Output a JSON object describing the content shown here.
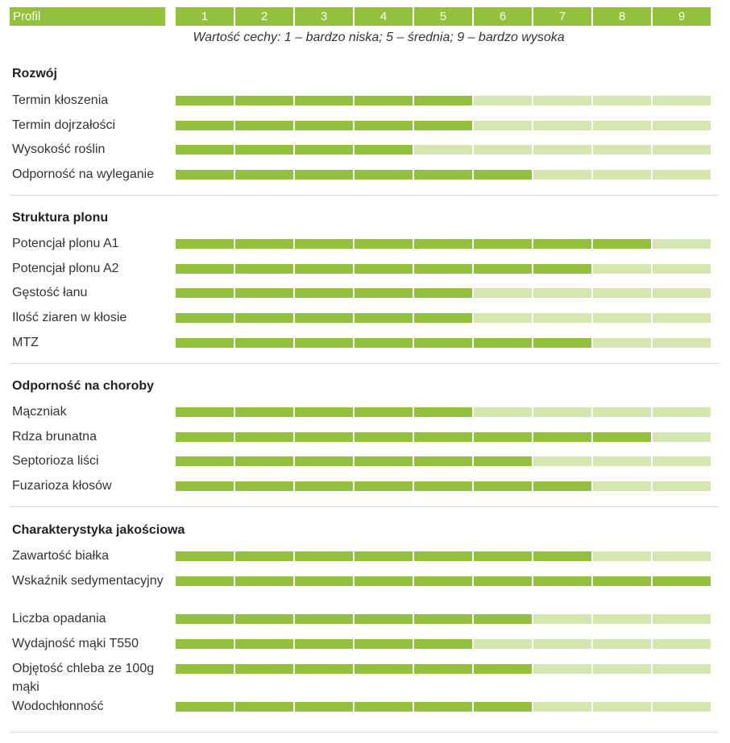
{
  "header": {
    "profil_label": "Profil",
    "scale": [
      "1",
      "2",
      "3",
      "4",
      "5",
      "6",
      "7",
      "8",
      "9"
    ],
    "legend": "Wartość cechy: 1 – bardzo niska; 5 – średnia; 9 – bardzo wysoka"
  },
  "colors": {
    "filled": "#93c13d",
    "empty": "#d6e6b0"
  },
  "sections": [
    {
      "title": "Rozwój",
      "rows": [
        {
          "label": "Termin kłoszenia",
          "value": 5
        },
        {
          "label": "Termin dojrzałości",
          "value": 5
        },
        {
          "label": "Wysokość roślin",
          "value": 4
        },
        {
          "label": "Odporność na wyleganie",
          "value": 6
        }
      ]
    },
    {
      "title": "Struktura plonu",
      "rows": [
        {
          "label": "Potencjał plonu A1",
          "value": 8
        },
        {
          "label": "Potencjał plonu A2",
          "value": 7
        },
        {
          "label": "Gęstość łanu",
          "value": 5
        },
        {
          "label": "Ilość ziaren w kłosie",
          "value": 5
        },
        {
          "label": "MTZ",
          "value": 7
        }
      ]
    },
    {
      "title": "Odporność na choroby",
      "rows": [
        {
          "label": "Mączniak",
          "value": 5
        },
        {
          "label": "Rdza brunatna",
          "value": 8
        },
        {
          "label": "Septorioza liści",
          "value": 6
        },
        {
          "label": "Fuzarioza kłosów",
          "value": 7
        }
      ]
    },
    {
      "title": "Charakterystyka jakościowa",
      "rows": [
        {
          "label": "Zawartość białka",
          "value": 7
        },
        {
          "label": "Wskaźnik sedymentacyjny",
          "value": 9
        },
        {
          "label": "Liczba opadania",
          "value": 6
        },
        {
          "label": "Wydajność mąki T550",
          "value": 5
        },
        {
          "label": "Objętość chleba ze 100g mąki",
          "value": 6
        },
        {
          "label": "Wodochłonność",
          "value": 6
        }
      ]
    }
  ]
}
